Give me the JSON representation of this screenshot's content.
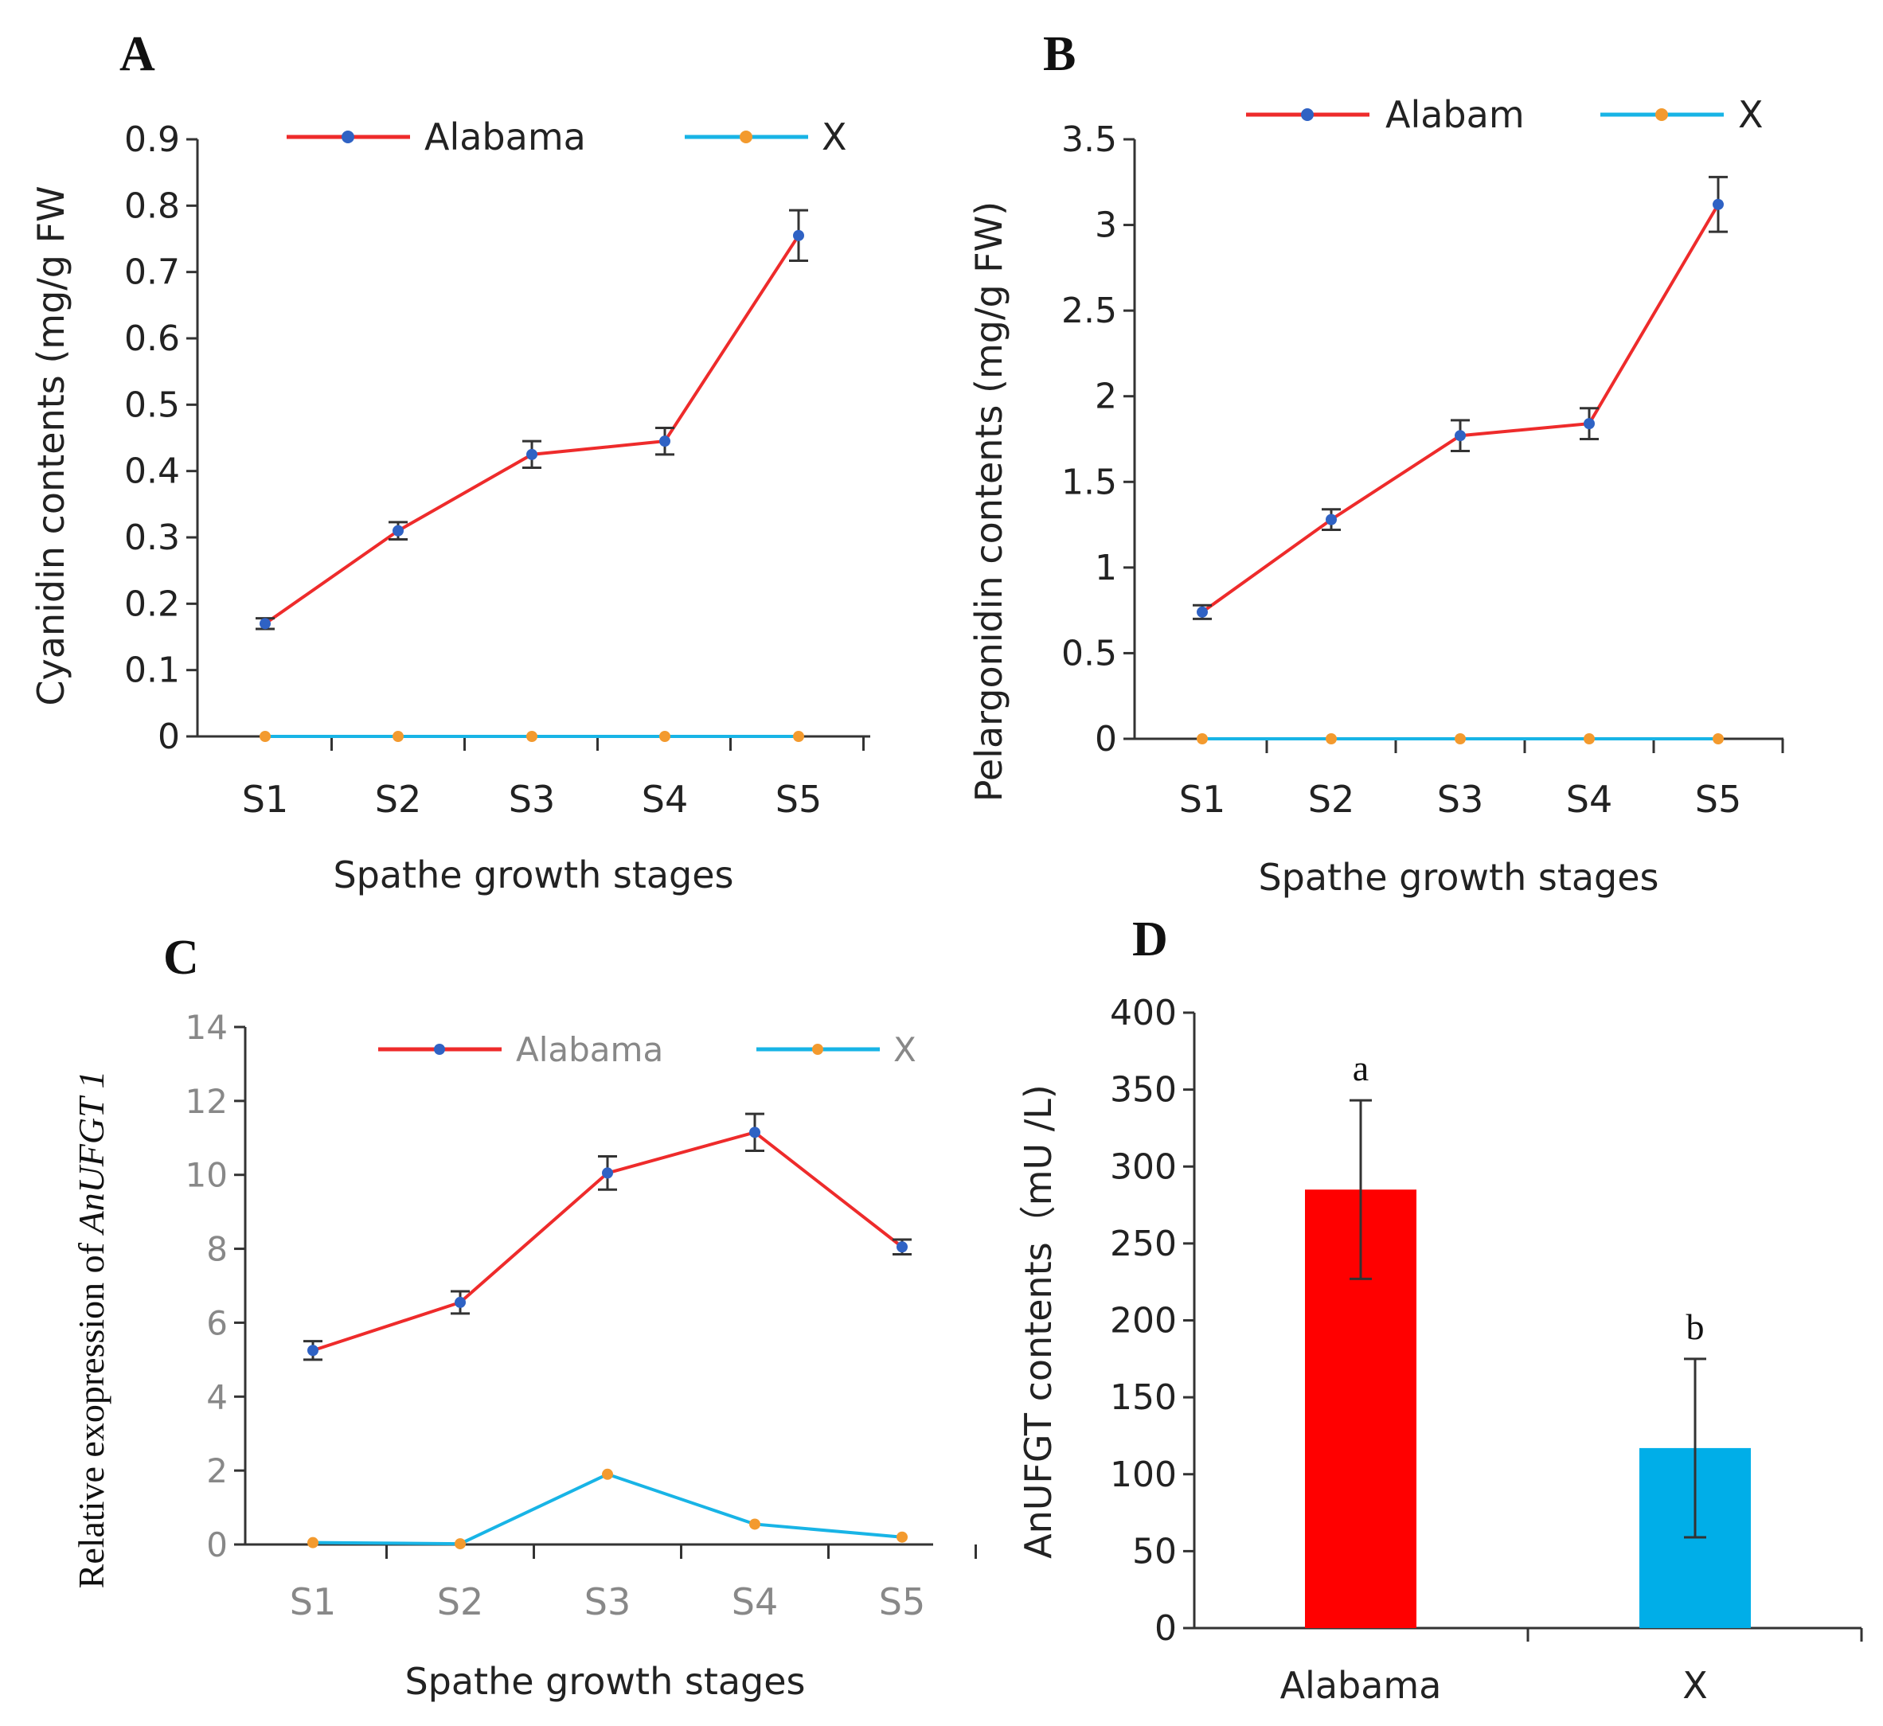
{
  "chart_data": [
    {
      "panel": "A",
      "type": "line",
      "categories": [
        "S1",
        "S2",
        "S3",
        "S4",
        "S5"
      ],
      "series": [
        {
          "name": "Alabama",
          "color": "#ee2b2b",
          "marker_color": "#2f62c4",
          "values": [
            0.17,
            0.31,
            0.425,
            0.445,
            0.755
          ],
          "errors": [
            0.008,
            0.013,
            0.02,
            0.02,
            0.038
          ]
        },
        {
          "name": "X",
          "color": "#18b4e6",
          "marker_color": "#f39a2e",
          "values": [
            0,
            0,
            0,
            0,
            0
          ],
          "errors": [
            0,
            0,
            0,
            0,
            0
          ]
        }
      ],
      "title": "",
      "xlabel": "Spathe growth stages",
      "ylabel": "Cyanidin contents (mg/g FW",
      "ylim": [
        0,
        0.9
      ],
      "yticks": [
        "0",
        "0.1",
        "0.2",
        "0.3",
        "0.4",
        "0.5",
        "0.6",
        "0.7",
        "0.8",
        "0.9"
      ],
      "legend": "top"
    },
    {
      "panel": "B",
      "type": "line",
      "categories": [
        "S1",
        "S2",
        "S3",
        "S4",
        "S5"
      ],
      "series": [
        {
          "name": "Alabam",
          "color": "#ee2b2b",
          "marker_color": "#2f62c4",
          "values": [
            0.74,
            1.28,
            1.77,
            1.84,
            3.12
          ],
          "errors": [
            0.04,
            0.06,
            0.09,
            0.09,
            0.16
          ]
        },
        {
          "name": "X",
          "color": "#18b4e6",
          "marker_color": "#f39a2e",
          "values": [
            0,
            0,
            0,
            0,
            0
          ],
          "errors": [
            0,
            0,
            0,
            0,
            0
          ]
        }
      ],
      "title": "",
      "xlabel": "Spathe growth stages",
      "ylabel": "Pelargonidin contents (mg/g FW)",
      "ylim": [
        0,
        3.5
      ],
      "yticks": [
        "0",
        "0.5",
        "1",
        "1.5",
        "2",
        "2.5",
        "3",
        "3.5"
      ],
      "legend": "top"
    },
    {
      "panel": "C",
      "type": "line",
      "categories": [
        "S1",
        "S2",
        "S3",
        "S4",
        "S5"
      ],
      "series": [
        {
          "name": "Alabama",
          "color": "#ee2b2b",
          "marker_color": "#2f62c4",
          "values": [
            5.25,
            6.55,
            10.05,
            11.15,
            8.05
          ],
          "errors": [
            0.25,
            0.3,
            0.45,
            0.5,
            0.2
          ]
        },
        {
          "name": "X",
          "color": "#18b4e6",
          "marker_color": "#f39a2e",
          "values": [
            0.05,
            0.02,
            1.9,
            0.55,
            0.2
          ],
          "errors": [
            0,
            0,
            0,
            0,
            0
          ]
        }
      ],
      "title": "",
      "xlabel": "Spathe growth stages",
      "ylabel_prefix": "Relative exopression  of ",
      "ylabel_gene": "AnUFGT 1",
      "ylim": [
        0,
        14
      ],
      "yticks": [
        "0",
        "2",
        "4",
        "6",
        "8",
        "10",
        "12",
        "14"
      ],
      "legend": "top"
    },
    {
      "panel": "D",
      "type": "bar",
      "categories": [
        "Alabama",
        "X"
      ],
      "values": [
        285,
        117
      ],
      "errors": [
        58,
        58
      ],
      "colors": [
        "#ff0000",
        "#00aee8"
      ],
      "significance": [
        "a",
        "b"
      ],
      "title": "",
      "xlabel": "",
      "ylabel": "AnUFGT  contents（mU /L)",
      "ylim": [
        0,
        400
      ],
      "yticks": [
        "0",
        "50",
        "100",
        "150",
        "200",
        "250",
        "300",
        "350",
        "400"
      ]
    }
  ]
}
